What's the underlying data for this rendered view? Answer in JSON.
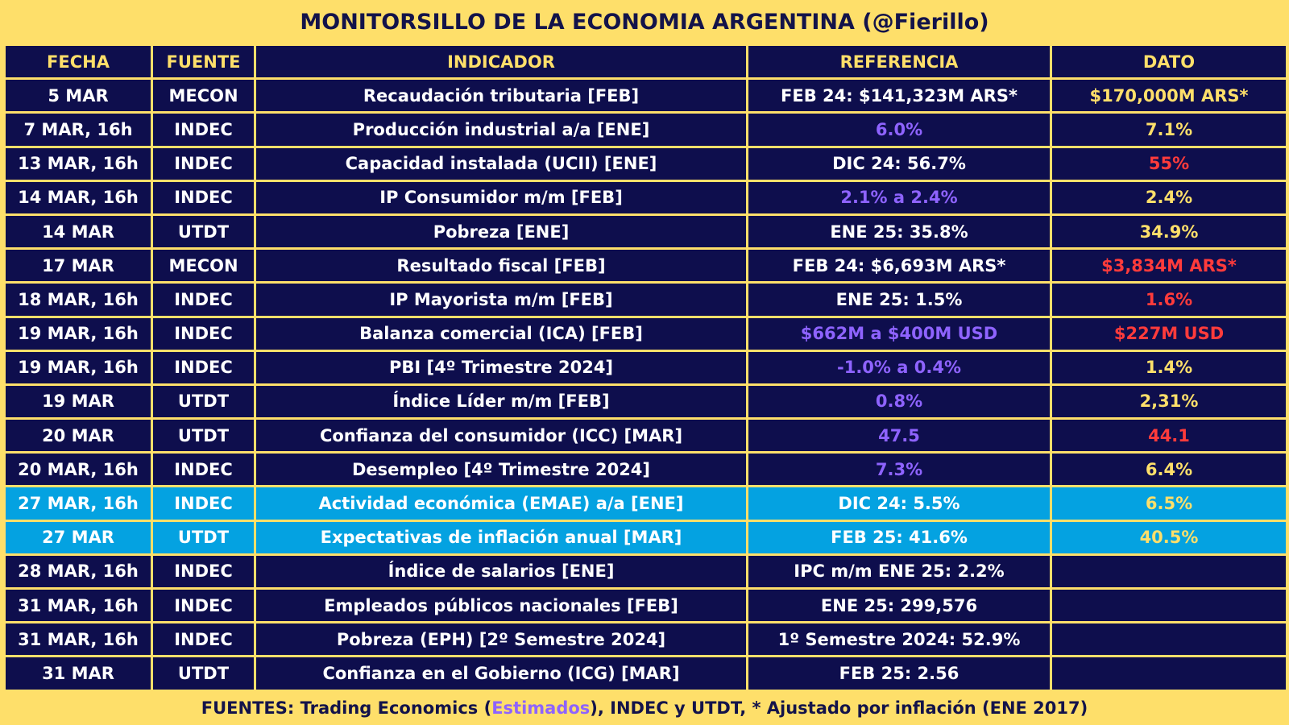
{
  "title": "MONITORSILLO DE LA ECONOMIA ARGENTINA (@Fierillo)",
  "colors": {
    "background": "#fedf6a",
    "cell": "#0e0e4d",
    "highlight": "#04a2e1",
    "estimate_purple": "#8e63ff",
    "positive_yellow": "#fedf6a",
    "negative_red": "#ff3b3b",
    "text_white": "#ffffff"
  },
  "headers": {
    "fecha": "FECHA",
    "fuente": "FUENTE",
    "indicador": "INDICADOR",
    "referencia": "REFERENCIA",
    "dato": "DATO"
  },
  "rows": [
    {
      "fecha": "5 MAR",
      "fuente": "MECON",
      "indicador": "Recaudación tributaria [FEB]",
      "referencia": "FEB 24: $141,323M ARS*",
      "ref_color": "white",
      "dato": "$170,000M ARS*",
      "dato_color": "yellow",
      "highlight": false
    },
    {
      "fecha": "7 MAR, 16h",
      "fuente": "INDEC",
      "indicador": "Producción industrial a/a [ENE]",
      "referencia": "6.0%",
      "ref_color": "purple",
      "dato": "7.1%",
      "dato_color": "yellow",
      "highlight": false
    },
    {
      "fecha": "13 MAR, 16h",
      "fuente": "INDEC",
      "indicador": "Capacidad instalada (UCII) [ENE]",
      "referencia": "DIC 24: 56.7%",
      "ref_color": "white",
      "dato": "55%",
      "dato_color": "red",
      "highlight": false
    },
    {
      "fecha": "14 MAR, 16h",
      "fuente": "INDEC",
      "indicador": "IP Consumidor m/m [FEB]",
      "referencia": "2.1% a 2.4%",
      "ref_color": "purple",
      "dato": "2.4%",
      "dato_color": "yellow",
      "highlight": false
    },
    {
      "fecha": "14 MAR",
      "fuente": "UTDT",
      "indicador": "Pobreza [ENE]",
      "referencia": "ENE 25: 35.8%",
      "ref_color": "white",
      "dato": "34.9%",
      "dato_color": "yellow",
      "highlight": false
    },
    {
      "fecha": "17 MAR",
      "fuente": "MECON",
      "indicador": "Resultado fiscal [FEB]",
      "referencia": "FEB 24: $6,693M ARS*",
      "ref_color": "white",
      "dato": "$3,834M ARS*",
      "dato_color": "red",
      "highlight": false
    },
    {
      "fecha": "18 MAR, 16h",
      "fuente": "INDEC",
      "indicador": "IP Mayorista m/m [FEB]",
      "referencia": "ENE 25: 1.5%",
      "ref_color": "white",
      "dato": "1.6%",
      "dato_color": "red",
      "highlight": false
    },
    {
      "fecha": "19 MAR, 16h",
      "fuente": "INDEC",
      "indicador": "Balanza comercial (ICA) [FEB]",
      "referencia": "$662M a $400M USD",
      "ref_color": "purple",
      "dato": "$227M USD",
      "dato_color": "red",
      "highlight": false
    },
    {
      "fecha": "19 MAR, 16h",
      "fuente": "INDEC",
      "indicador": "PBI [4º Trimestre 2024]",
      "referencia": "-1.0% a 0.4%",
      "ref_color": "purple",
      "dato": "1.4%",
      "dato_color": "yellow",
      "highlight": false
    },
    {
      "fecha": "19 MAR",
      "fuente": "UTDT",
      "indicador": "Índice Líder m/m [FEB]",
      "referencia": "0.8%",
      "ref_color": "purple",
      "dato": "2,31%",
      "dato_color": "yellow",
      "highlight": false
    },
    {
      "fecha": "20 MAR",
      "fuente": "UTDT",
      "indicador": "Confianza del consumidor (ICC) [MAR]",
      "referencia": "47.5",
      "ref_color": "purple",
      "dato": "44.1",
      "dato_color": "red",
      "highlight": false
    },
    {
      "fecha": "20 MAR, 16h",
      "fuente": "INDEC",
      "indicador": "Desempleo [4º Trimestre 2024]",
      "referencia": "7.3%",
      "ref_color": "purple",
      "dato": "6.4%",
      "dato_color": "yellow",
      "highlight": false
    },
    {
      "fecha": "27 MAR, 16h",
      "fuente": "INDEC",
      "indicador": "Actividad económica (EMAE) a/a [ENE]",
      "referencia": "DIC 24: 5.5%",
      "ref_color": "white",
      "dato": "6.5%",
      "dato_color": "yellow",
      "highlight": true
    },
    {
      "fecha": "27 MAR",
      "fuente": "UTDT",
      "indicador": "Expectativas de inflación anual [MAR]",
      "referencia": "FEB 25: 41.6%",
      "ref_color": "white",
      "dato": "40.5%",
      "dato_color": "yellow",
      "highlight": true
    },
    {
      "fecha": "28 MAR, 16h",
      "fuente": "INDEC",
      "indicador": "Índice de salarios [ENE]",
      "referencia": "IPC m/m ENE 25: 2.2%",
      "ref_color": "white",
      "dato": "",
      "dato_color": "yellow",
      "highlight": false
    },
    {
      "fecha": "31 MAR, 16h",
      "fuente": "INDEC",
      "indicador": "Empleados públicos nacionales [FEB]",
      "referencia": "ENE 25: 299,576",
      "ref_color": "white",
      "dato": "",
      "dato_color": "yellow",
      "highlight": false
    },
    {
      "fecha": "31 MAR, 16h",
      "fuente": "INDEC",
      "indicador": "Pobreza (EPH) [2º Semestre 2024]",
      "referencia": "1º Semestre 2024: 52.9%",
      "ref_color": "white",
      "dato": "",
      "dato_color": "yellow",
      "highlight": false
    },
    {
      "fecha": "31 MAR",
      "fuente": "UTDT",
      "indicador": "Confianza en el Gobierno (ICG) [MAR]",
      "referencia": "FEB 25: 2.56",
      "ref_color": "white",
      "dato": "",
      "dato_color": "yellow",
      "highlight": false
    }
  ],
  "footer": {
    "prefix": "FUENTES: Trading Economics (",
    "estimados": "Estimados",
    "suffix": "), INDEC y UTDT, * Ajustado por inflación (ENE 2017)"
  }
}
